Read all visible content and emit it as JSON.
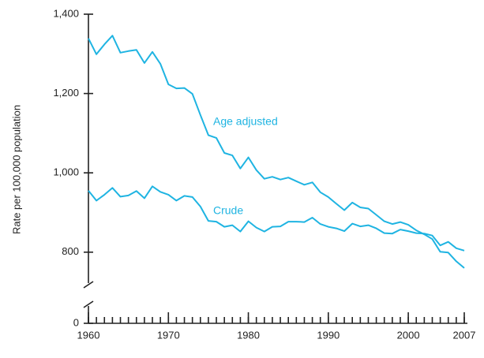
{
  "chart_data": {
    "type": "line",
    "y_label": "Rate per 100,000 population",
    "x": [
      1960,
      1961,
      1962,
      1963,
      1964,
      1965,
      1966,
      1967,
      1968,
      1969,
      1970,
      1971,
      1972,
      1973,
      1974,
      1975,
      1976,
      1977,
      1978,
      1979,
      1980,
      1981,
      1982,
      1983,
      1984,
      1985,
      1986,
      1987,
      1988,
      1989,
      1990,
      1991,
      1992,
      1993,
      1994,
      1995,
      1996,
      1997,
      1998,
      1999,
      2000,
      2001,
      2002,
      2003,
      2004,
      2005,
      2006,
      2007
    ],
    "series": [
      {
        "name": "Age adjusted",
        "color": "#1fb4e2",
        "values": [
          1339,
          1299,
          1324,
          1346,
          1303,
          1307,
          1310,
          1277,
          1305,
          1275,
          1223,
          1213,
          1214,
          1199,
          1146,
          1095,
          1088,
          1050,
          1044,
          1011,
          1039,
          1007,
          985,
          990,
          983,
          988,
          979,
          970,
          976,
          951,
          939,
          922,
          906,
          925,
          913,
          910,
          894,
          878,
          871,
          876,
          869,
          855,
          845,
          833,
          801,
          799,
          777,
          760
        ]
      },
      {
        "name": "Crude",
        "color": "#1fb4e2",
        "values": [
          955,
          930,
          945,
          962,
          940,
          943,
          954,
          936,
          966,
          952,
          945,
          930,
          942,
          939,
          915,
          879,
          877,
          864,
          868,
          852,
          878,
          862,
          852,
          864,
          865,
          877,
          877,
          876,
          887,
          871,
          864,
          860,
          853,
          872,
          865,
          868,
          860,
          848,
          847,
          857,
          853,
          848,
          847,
          842,
          817,
          826,
          810,
          804
        ]
      }
    ],
    "xlim": [
      1960,
      2007
    ],
    "xticks": [
      1960,
      1970,
      1980,
      1990,
      2000,
      2007
    ],
    "ylim": [
      730,
      1400
    ],
    "yticks": [
      0,
      {
        "value": 800,
        "label": "800"
      },
      {
        "value": 1000,
        "label": "1,000"
      },
      {
        "value": 1200,
        "label": "1,200"
      },
      {
        "value": 1400,
        "label": "1,400"
      }
    ],
    "axis_break": true,
    "grid": false
  }
}
